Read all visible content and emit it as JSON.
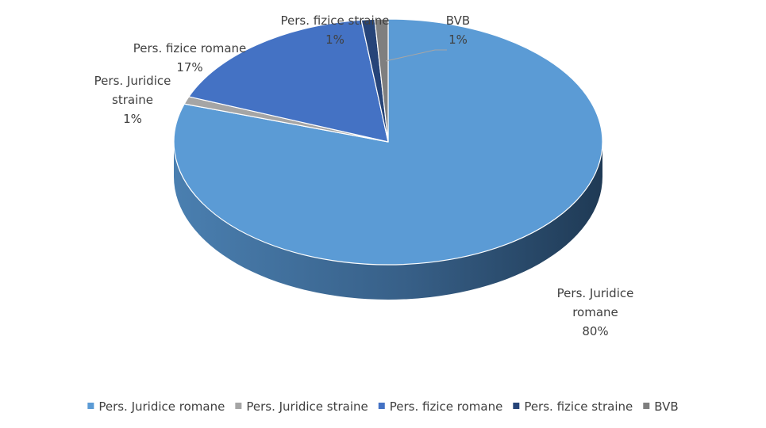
{
  "chart_data": {
    "type": "pie",
    "style": "3d",
    "title": "",
    "categories": [
      "Pers. Juridice romane",
      "Pers. Juridice straine",
      "Pers. fizice romane",
      "Pers. fizice straine",
      "BVB"
    ],
    "values": [
      80,
      1,
      17,
      1,
      1
    ],
    "data_labels": [
      {
        "name_lines": [
          "Pers. Juridice",
          "romane"
        ],
        "value": "80%"
      },
      {
        "name_lines": [
          "Pers. Juridice",
          "straine"
        ],
        "value": "1%"
      },
      {
        "name_lines": [
          "Pers. fizice romane"
        ],
        "value": "17%"
      },
      {
        "name_lines": [
          "Pers. fizice straine"
        ],
        "value": "1%"
      },
      {
        "name_lines": [
          "BVB"
        ],
        "value": "1%"
      }
    ],
    "colors": [
      "#5b9bd5",
      "#a5a5a5",
      "#4472c4",
      "#264478",
      "#7f7f7f"
    ],
    "legend_position": "bottom"
  }
}
